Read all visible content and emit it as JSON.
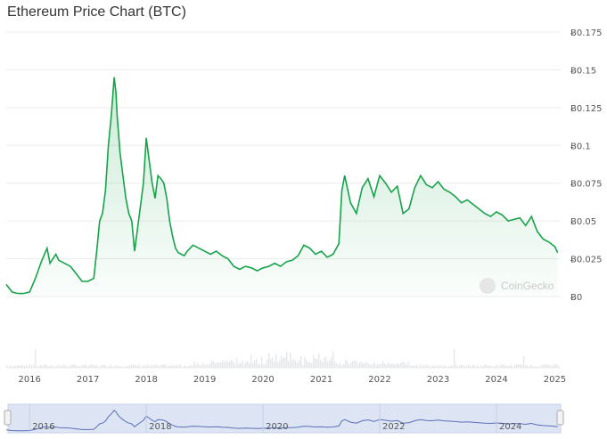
{
  "chart_data": {
    "type": "area",
    "title": "Ethereum Price Chart (BTC)",
    "y_currency_symbol": "Ƀ",
    "y_ticks": [
      0,
      0.025,
      0.05,
      0.075,
      0.1,
      0.125,
      0.15,
      0.175
    ],
    "y_tick_labels": [
      "Ƀ0",
      "Ƀ0.025",
      "Ƀ0.05",
      "Ƀ0.075",
      "Ƀ0.1",
      "Ƀ0.125",
      "Ƀ0.15",
      "Ƀ0.175"
    ],
    "ylim": [
      0,
      0.175
    ],
    "xlim": [
      2015.6,
      2025.1
    ],
    "x_ticks": [
      2016,
      2017,
      2018,
      2019,
      2020,
      2021,
      2022,
      2023,
      2024,
      2025
    ],
    "x_tick_labels": [
      "2016",
      "2017",
      "2018",
      "2019",
      "2020",
      "2021",
      "2022",
      "2023",
      "2024",
      "2025"
    ],
    "navigator_tick_labels": [
      "2016",
      "2018",
      "2020",
      "2022",
      "2024"
    ],
    "grid": true,
    "line_color": "#16a34a",
    "fill_color": "#16a34a",
    "series": [
      {
        "x": [
          2015.6,
          2015.7,
          2015.8,
          2015.9,
          2016.0,
          2016.1,
          2016.2,
          2016.3,
          2016.35,
          2016.45,
          2016.5,
          2016.6,
          2016.7,
          2016.8,
          2016.9,
          2017.0,
          2017.1,
          2017.15,
          2017.2,
          2017.25,
          2017.3,
          2017.35,
          2017.4,
          2017.45,
          2017.48,
          2017.5,
          2017.55,
          2017.6,
          2017.65,
          2017.7,
          2017.75,
          2017.8,
          2017.85,
          2017.9,
          2017.95,
          2018.0,
          2018.05,
          2018.1,
          2018.15,
          2018.2,
          2018.25,
          2018.3,
          2018.35,
          2018.4,
          2018.45,
          2018.5,
          2018.55,
          2018.6,
          2018.65,
          2018.7,
          2018.8,
          2018.9,
          2019.0,
          2019.1,
          2019.2,
          2019.3,
          2019.4,
          2019.5,
          2019.6,
          2019.7,
          2019.8,
          2019.9,
          2020.0,
          2020.1,
          2020.2,
          2020.3,
          2020.4,
          2020.5,
          2020.6,
          2020.7,
          2020.8,
          2020.9,
          2021.0,
          2021.1,
          2021.2,
          2021.3,
          2021.35,
          2021.4,
          2021.5,
          2021.6,
          2021.7,
          2021.8,
          2021.9,
          2022.0,
          2022.1,
          2022.2,
          2022.3,
          2022.4,
          2022.5,
          2022.6,
          2022.7,
          2022.8,
          2022.9,
          2023.0,
          2023.1,
          2023.2,
          2023.3,
          2023.4,
          2023.5,
          2023.6,
          2023.7,
          2023.8,
          2023.9,
          2024.0,
          2024.1,
          2024.2,
          2024.3,
          2024.4,
          2024.5,
          2024.6,
          2024.7,
          2024.8,
          2024.9,
          2025.0,
          2025.05
        ],
        "y": [
          0.008,
          0.003,
          0.002,
          0.002,
          0.003,
          0.012,
          0.023,
          0.032,
          0.022,
          0.028,
          0.024,
          0.022,
          0.02,
          0.015,
          0.01,
          0.01,
          0.012,
          0.03,
          0.05,
          0.055,
          0.07,
          0.1,
          0.12,
          0.145,
          0.135,
          0.12,
          0.095,
          0.08,
          0.065,
          0.055,
          0.05,
          0.03,
          0.045,
          0.06,
          0.075,
          0.105,
          0.09,
          0.075,
          0.065,
          0.08,
          0.078,
          0.075,
          0.065,
          0.05,
          0.04,
          0.032,
          0.029,
          0.028,
          0.027,
          0.03,
          0.034,
          0.032,
          0.03,
          0.028,
          0.03,
          0.027,
          0.025,
          0.02,
          0.018,
          0.02,
          0.019,
          0.017,
          0.019,
          0.02,
          0.022,
          0.02,
          0.023,
          0.024,
          0.027,
          0.034,
          0.032,
          0.028,
          0.03,
          0.026,
          0.028,
          0.035,
          0.07,
          0.08,
          0.062,
          0.055,
          0.072,
          0.078,
          0.066,
          0.08,
          0.075,
          0.069,
          0.073,
          0.055,
          0.058,
          0.072,
          0.08,
          0.074,
          0.072,
          0.076,
          0.071,
          0.069,
          0.066,
          0.062,
          0.064,
          0.061,
          0.058,
          0.055,
          0.053,
          0.056,
          0.054,
          0.05,
          0.051,
          0.052,
          0.047,
          0.053,
          0.043,
          0.038,
          0.036,
          0.033,
          0.029
        ]
      }
    ],
    "volume_bars_color": "#e5e7eb",
    "watermark": "CoinGecko"
  }
}
